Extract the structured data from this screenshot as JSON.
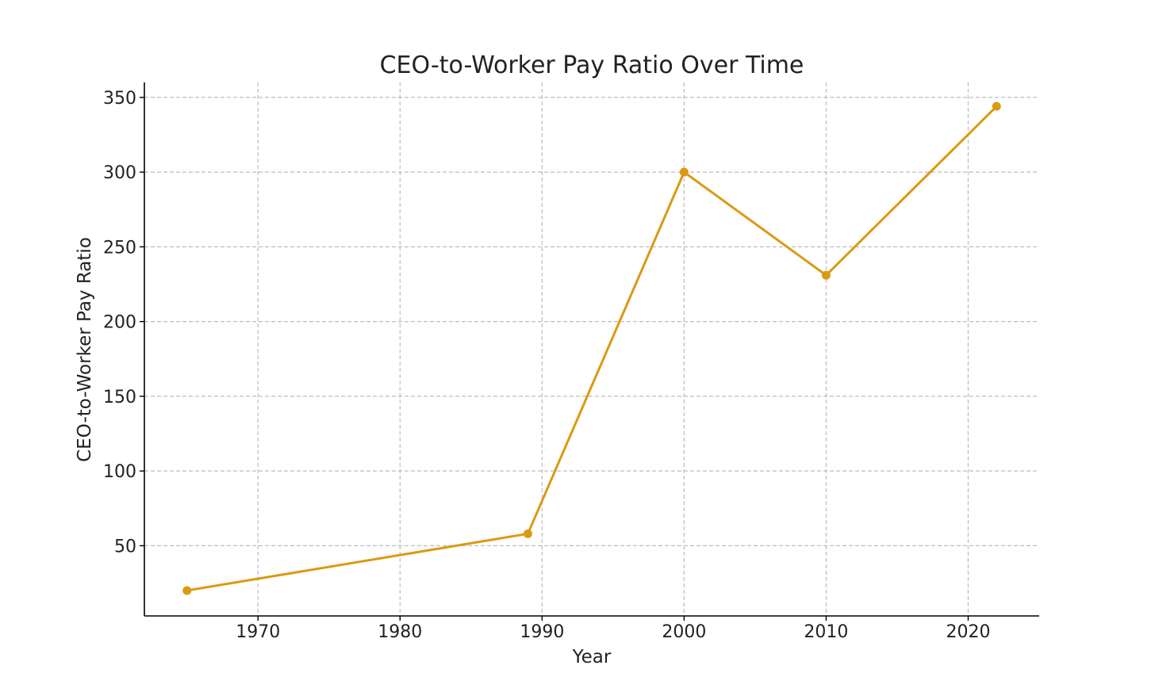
{
  "chart_data": {
    "type": "line",
    "title": "CEO-to-Worker Pay Ratio Over Time",
    "xlabel": "Year",
    "ylabel": "CEO-to-Worker Pay Ratio",
    "xlim": [
      1962,
      2025
    ],
    "ylim": [
      3,
      360
    ],
    "xticks": [
      1970,
      1980,
      1990,
      2000,
      2010,
      2020
    ],
    "yticks": [
      50,
      100,
      150,
      200,
      250,
      300,
      350
    ],
    "grid": true,
    "colors": {
      "line": "#DA9A12",
      "marker": "#DA9A12"
    },
    "series": [
      {
        "x": [
          1965,
          1989,
          2000,
          2010,
          2022
        ],
        "y": [
          20,
          58,
          300,
          231,
          344
        ]
      }
    ]
  }
}
